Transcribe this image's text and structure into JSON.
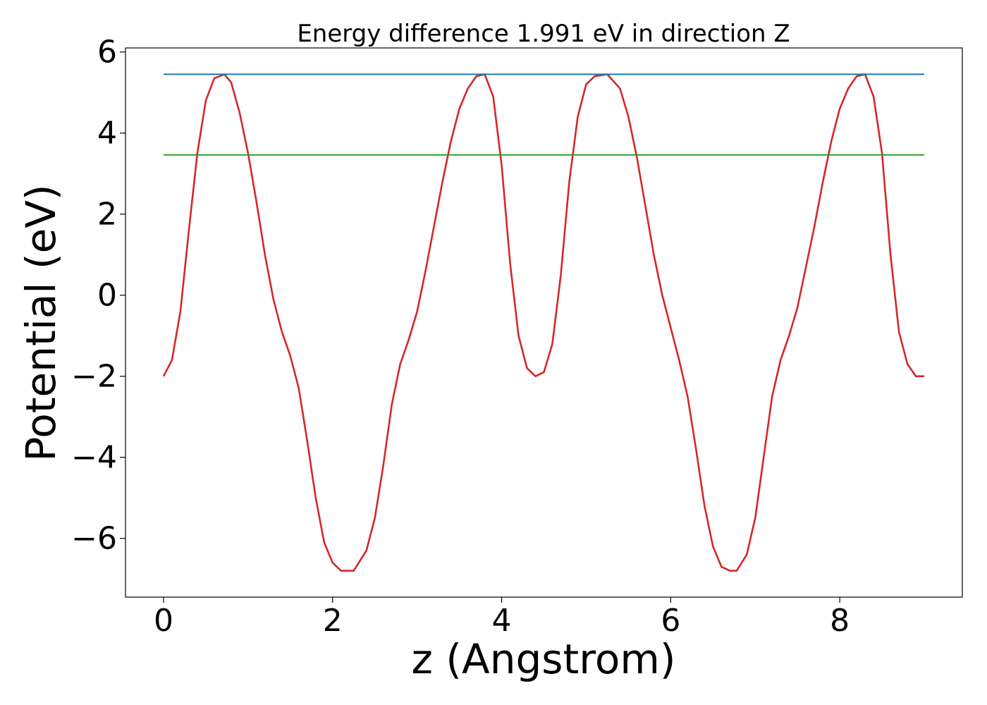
{
  "chart_data": {
    "type": "line",
    "title": "Energy difference 1.991 eV in direction Z",
    "xlabel": "z (Angstrom)",
    "ylabel": "Potential (eV)",
    "xlim": [
      -0.45,
      9.45
    ],
    "ylim": [
      -7.45,
      6.1
    ],
    "xticks": [
      0,
      2,
      4,
      6,
      8
    ],
    "xtick_labels": [
      "0",
      "2",
      "4",
      "6",
      "8"
    ],
    "yticks": [
      -6,
      -4,
      -2,
      0,
      2,
      4,
      6
    ],
    "ytick_labels": [
      "−6",
      "−4",
      "−2",
      "0",
      "2",
      "4",
      "6"
    ],
    "grid": false,
    "series": [
      {
        "color": "#d62728",
        "x": [
          0.0,
          0.1,
          0.2,
          0.3,
          0.4,
          0.5,
          0.6,
          0.72,
          0.8,
          0.9,
          1.0,
          1.1,
          1.2,
          1.3,
          1.4,
          1.5,
          1.6,
          1.7,
          1.8,
          1.9,
          2.0,
          2.1,
          2.25,
          2.4,
          2.5,
          2.6,
          2.7,
          2.8,
          2.9,
          3.0,
          3.1,
          3.2,
          3.3,
          3.4,
          3.5,
          3.6,
          3.7,
          3.8,
          3.9,
          4.0,
          4.1,
          4.2,
          4.3,
          4.4,
          4.5,
          4.6,
          4.7,
          4.8,
          4.9,
          5.0,
          5.1,
          5.25,
          5.4,
          5.5,
          5.6,
          5.7,
          5.8,
          5.9,
          6.0,
          6.1,
          6.2,
          6.3,
          6.4,
          6.5,
          6.6,
          6.7,
          6.78,
          6.9,
          7.0,
          7.1,
          7.2,
          7.3,
          7.4,
          7.5,
          7.6,
          7.7,
          7.8,
          7.9,
          8.0,
          8.1,
          8.2,
          8.3,
          8.4,
          8.5,
          8.6,
          8.7,
          8.8,
          8.9,
          9.0
        ],
        "y": [
          -2.0,
          -1.6,
          -0.4,
          1.6,
          3.5,
          4.8,
          5.35,
          5.45,
          5.25,
          4.5,
          3.5,
          2.3,
          1.0,
          -0.1,
          -0.9,
          -1.5,
          -2.3,
          -3.6,
          -5.0,
          -6.1,
          -6.6,
          -6.8,
          -6.8,
          -6.3,
          -5.5,
          -4.2,
          -2.7,
          -1.7,
          -1.1,
          -0.4,
          0.6,
          1.7,
          2.8,
          3.8,
          4.6,
          5.1,
          5.4,
          5.45,
          4.9,
          3.2,
          0.8,
          -1.0,
          -1.8,
          -2.0,
          -1.9,
          -1.2,
          0.5,
          2.8,
          4.4,
          5.2,
          5.4,
          5.45,
          5.1,
          4.4,
          3.4,
          2.2,
          1.0,
          0.0,
          -0.8,
          -1.6,
          -2.5,
          -3.8,
          -5.2,
          -6.2,
          -6.7,
          -6.8,
          -6.8,
          -6.4,
          -5.5,
          -4.0,
          -2.5,
          -1.6,
          -1.0,
          -0.3,
          0.7,
          1.7,
          2.8,
          3.8,
          4.6,
          5.1,
          5.4,
          5.45,
          4.9,
          3.5,
          1.0,
          -0.9,
          -1.7,
          -2.0,
          -2.0
        ]
      },
      {
        "color": "#1f77b4",
        "x": [
          0.0,
          9.0
        ],
        "y": [
          5.45,
          5.45
        ]
      },
      {
        "color": "#2ca02c",
        "x": [
          0.0,
          9.0
        ],
        "y": [
          3.46,
          3.46
        ]
      }
    ]
  }
}
